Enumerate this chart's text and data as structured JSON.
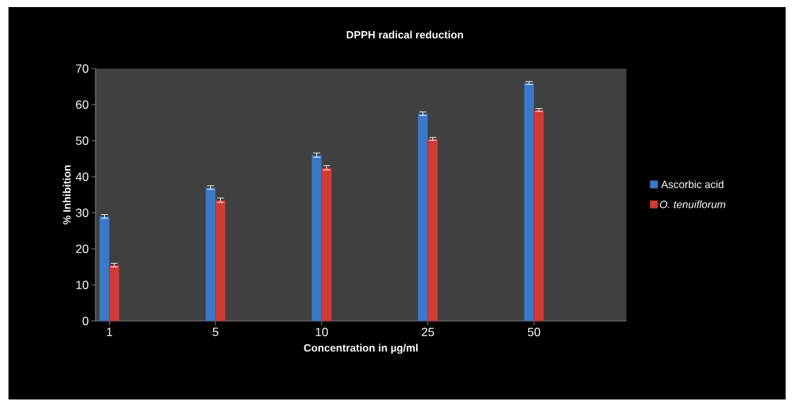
{
  "chart_data": {
    "type": "bar",
    "title": "DPPH radical reduction",
    "xlabel": "Concentration in µg/ml",
    "ylabel": "% Inhibition",
    "categories": [
      "1",
      "5",
      "10",
      "25",
      "50"
    ],
    "series": [
      {
        "name": "Ascorbic acid",
        "color": "#3b78c8",
        "values": [
          29,
          37,
          46,
          57.5,
          66
        ],
        "errors": [
          0.5,
          0.5,
          0.6,
          0.5,
          0.4
        ]
      },
      {
        "name": "O. tenuiflorum",
        "color": "#d13b36",
        "values": [
          15.5,
          33.5,
          42.5,
          50.5,
          58.5
        ],
        "errors": [
          0.5,
          0.6,
          0.6,
          0.4,
          0.4
        ]
      }
    ],
    "ylim": [
      0,
      70
    ],
    "yticks": [
      0,
      10,
      20,
      30,
      40,
      50,
      60,
      70
    ],
    "grid": false,
    "legend": "right"
  }
}
